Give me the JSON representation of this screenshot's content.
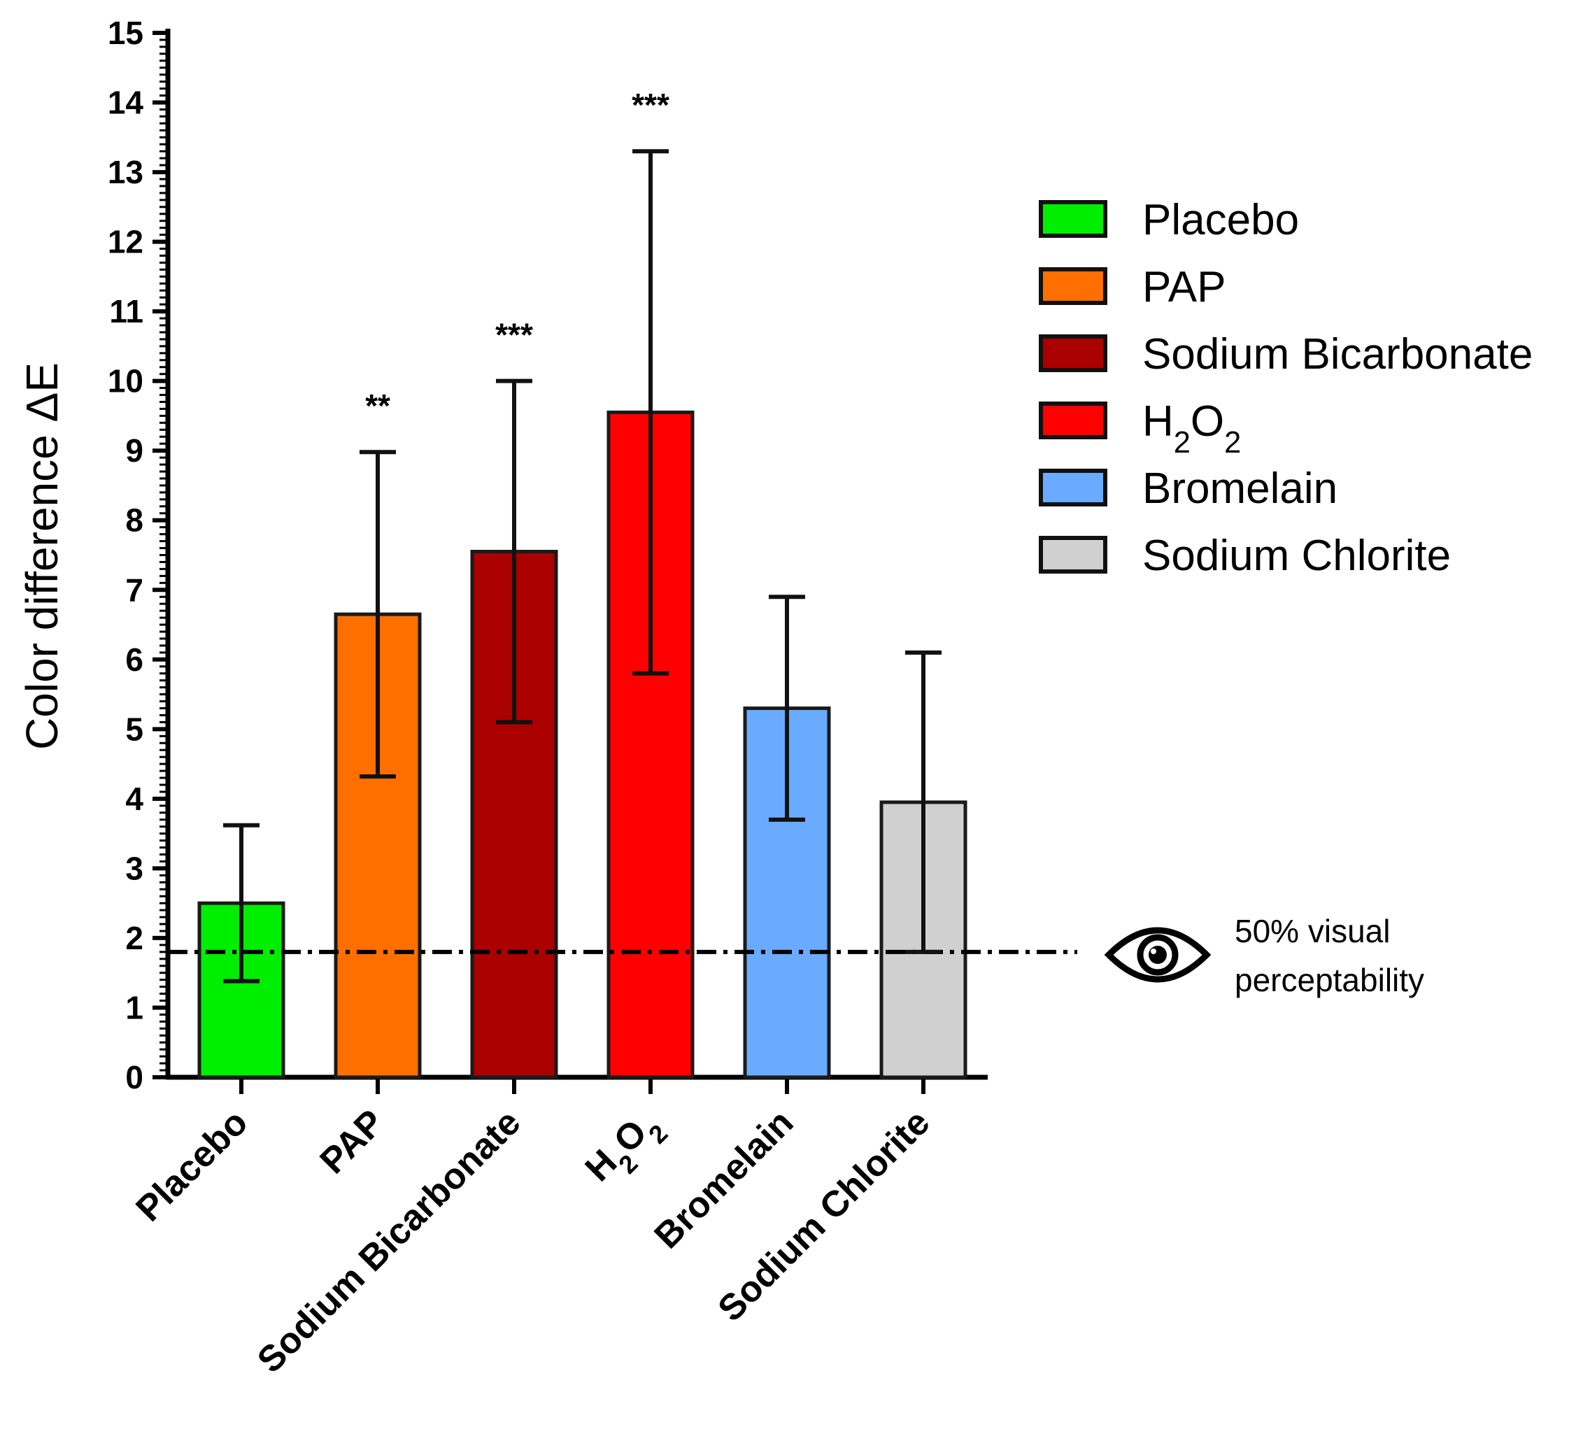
{
  "chart_data": {
    "type": "bar",
    "ylabel": "Color difference ΔE",
    "ylim": [
      0,
      15
    ],
    "yticks": [
      0,
      1,
      2,
      3,
      4,
      5,
      6,
      7,
      8,
      9,
      10,
      11,
      12,
      13,
      14,
      15
    ],
    "categories": [
      "Placebo",
      "PAP",
      "Sodium Bicarbonate",
      "H2O2",
      "Bromelain",
      "Sodium Chlorite"
    ],
    "values": [
      2.5,
      6.65,
      7.55,
      9.55,
      5.3,
      3.95
    ],
    "error_bars": [
      1.12,
      2.33,
      2.45,
      3.75,
      1.6,
      2.15
    ],
    "significance": [
      "",
      "**",
      "***",
      "***",
      "",
      ""
    ],
    "colors": [
      "#00ee00",
      "#ff6f00",
      "#aa0000",
      "#ff0000",
      "#6aaaff",
      "#d0d0d0"
    ],
    "legend": [
      "Placebo",
      "PAP",
      "Sodium Bicarbonate",
      "H2O2",
      "Bromelain",
      "Sodium Chlorite"
    ],
    "legend_position": "right",
    "reference_line": {
      "value": 1.8,
      "style": "dash-dot",
      "label_line1": "50% visual",
      "label_line2": "perceptability",
      "icon": "eye-icon"
    }
  }
}
